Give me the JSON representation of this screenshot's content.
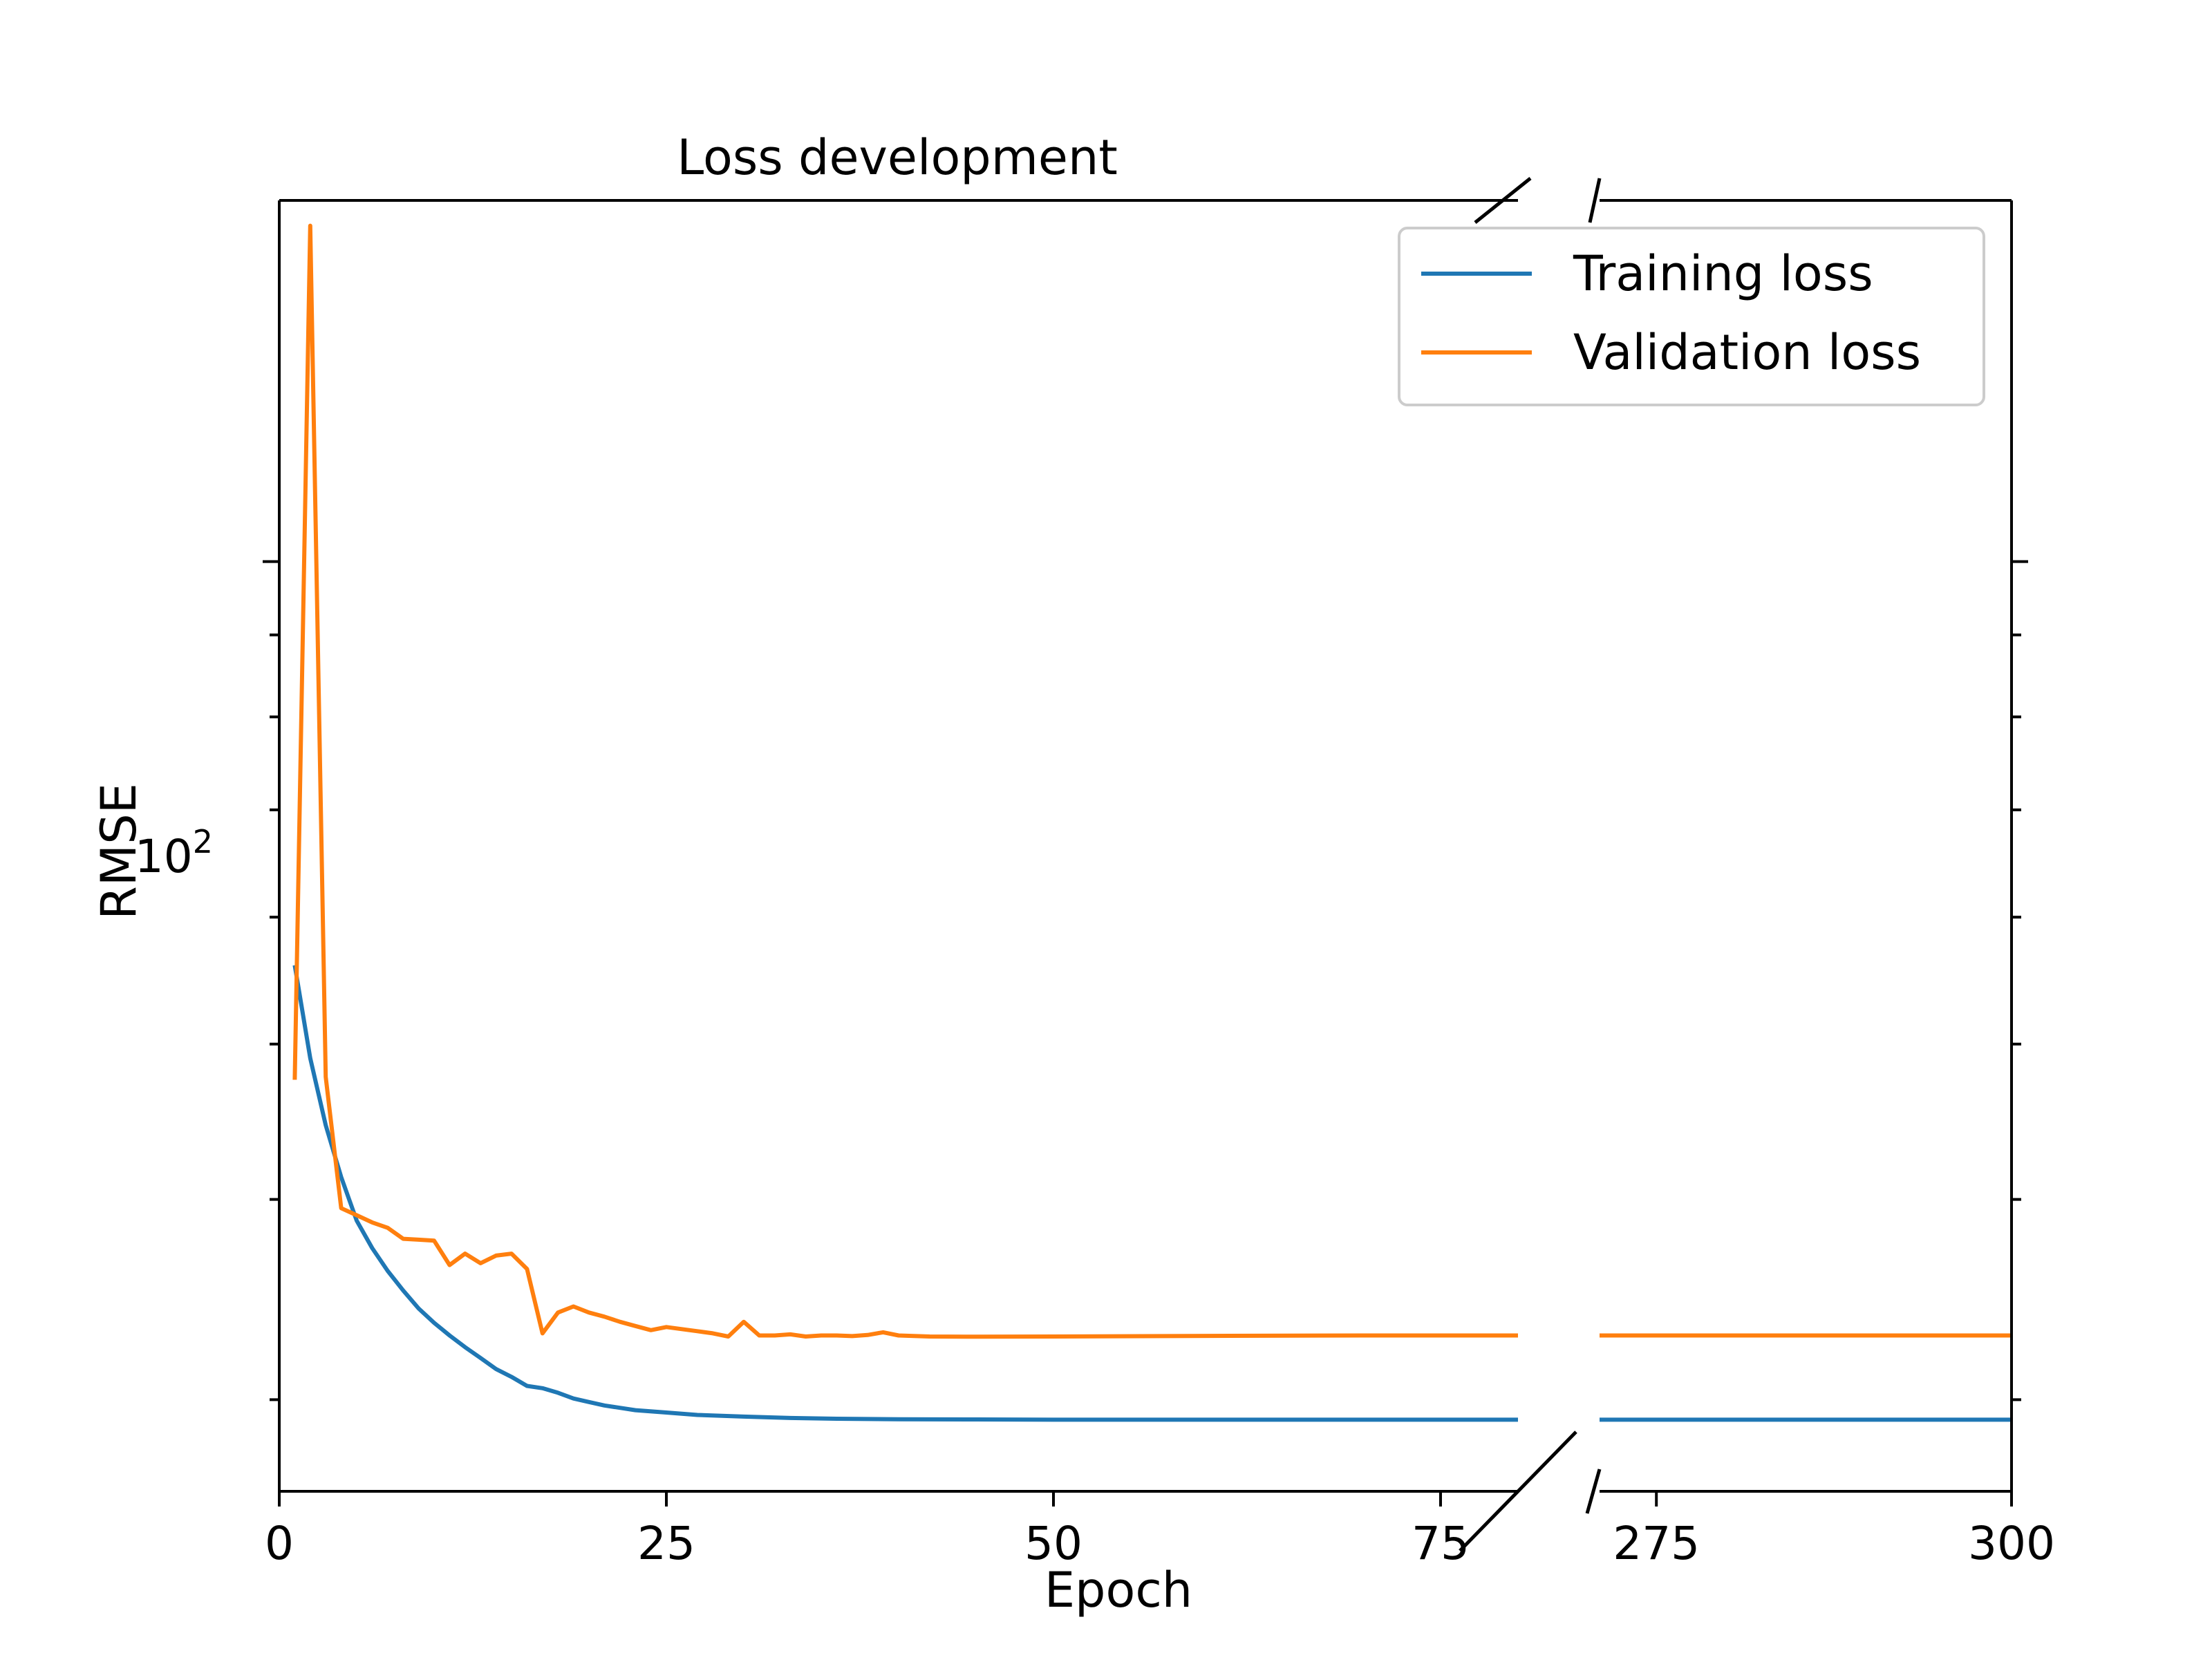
{
  "chart_data": {
    "type": "line",
    "title": "Loss development",
    "xlabel": "Epoch",
    "ylabel": "RMSE",
    "y_scale": "log",
    "y_range": [
      26.3,
      168
    ],
    "y_major_tick": {
      "value": 100,
      "base": "10",
      "exponent": "2"
    },
    "x_axis_break": true,
    "x_segments": [
      {
        "range": [
          0,
          80
        ],
        "ticks": [
          0,
          25,
          50,
          75
        ],
        "tick_labels": [
          "0",
          "25",
          "50",
          "75"
        ]
      },
      {
        "range": [
          271,
          300
        ],
        "ticks": [
          275,
          300
        ],
        "tick_labels": [
          "275",
          "300"
        ]
      }
    ],
    "grid": false,
    "legend_position": "top-right",
    "series": [
      {
        "name": "Training loss",
        "color": "#1f77b4",
        "points": [
          [
            1,
            56.0
          ],
          [
            2,
            49.0
          ],
          [
            3,
            44.5
          ],
          [
            4,
            41.3
          ],
          [
            5,
            38.8
          ],
          [
            6,
            37.3
          ],
          [
            7,
            36.1
          ],
          [
            8,
            35.1
          ],
          [
            9,
            34.2
          ],
          [
            10,
            33.5
          ],
          [
            11,
            32.9
          ],
          [
            12,
            32.35
          ],
          [
            13,
            31.85
          ],
          [
            14,
            31.35
          ],
          [
            15,
            31.0
          ],
          [
            16,
            30.6
          ],
          [
            17,
            30.5
          ],
          [
            18,
            30.3
          ],
          [
            19,
            30.05
          ],
          [
            20,
            29.9
          ],
          [
            21,
            29.75
          ],
          [
            22,
            29.65
          ],
          [
            23,
            29.55
          ],
          [
            25,
            29.45
          ],
          [
            27,
            29.35
          ],
          [
            30,
            29.28
          ],
          [
            33,
            29.22
          ],
          [
            36,
            29.19
          ],
          [
            40,
            29.17
          ],
          [
            45,
            29.16
          ],
          [
            50,
            29.15
          ],
          [
            60,
            29.15
          ],
          [
            70,
            29.15
          ],
          [
            80,
            29.15
          ],
          [
            271,
            29.15
          ],
          [
            280,
            29.15
          ],
          [
            290,
            29.15
          ],
          [
            300,
            29.15
          ]
        ]
      },
      {
        "name": "Validation loss",
        "color": "#ff7f0e",
        "points": [
          [
            1,
            47.5
          ],
          [
            2,
            162.0
          ],
          [
            3,
            47.7
          ],
          [
            4,
            39.5
          ],
          [
            5,
            39.1
          ],
          [
            6,
            38.7
          ],
          [
            7,
            38.4
          ],
          [
            8,
            37.8
          ],
          [
            9,
            37.75
          ],
          [
            10,
            37.7
          ],
          [
            11,
            36.4
          ],
          [
            12,
            37.0
          ],
          [
            13,
            36.5
          ],
          [
            14,
            36.9
          ],
          [
            15,
            37.0
          ],
          [
            16,
            36.2
          ],
          [
            17,
            33.0
          ],
          [
            18,
            34.0
          ],
          [
            19,
            34.3
          ],
          [
            20,
            34.0
          ],
          [
            21,
            33.8
          ],
          [
            22,
            33.55
          ],
          [
            23,
            33.35
          ],
          [
            24,
            33.15
          ],
          [
            25,
            33.3
          ],
          [
            26,
            33.2
          ],
          [
            27,
            33.1
          ],
          [
            28,
            33.0
          ],
          [
            29,
            32.85
          ],
          [
            30,
            33.55
          ],
          [
            31,
            32.9
          ],
          [
            32,
            32.9
          ],
          [
            33,
            32.95
          ],
          [
            34,
            32.85
          ],
          [
            35,
            32.9
          ],
          [
            36,
            32.9
          ],
          [
            37,
            32.87
          ],
          [
            38,
            32.92
          ],
          [
            39,
            33.05
          ],
          [
            40,
            32.9
          ],
          [
            42,
            32.85
          ],
          [
            45,
            32.84
          ],
          [
            50,
            32.85
          ],
          [
            60,
            32.88
          ],
          [
            70,
            32.9
          ],
          [
            80,
            32.9
          ],
          [
            271,
            32.9
          ],
          [
            280,
            32.9
          ],
          [
            290,
            32.9
          ],
          [
            300,
            32.9
          ]
        ]
      }
    ]
  }
}
